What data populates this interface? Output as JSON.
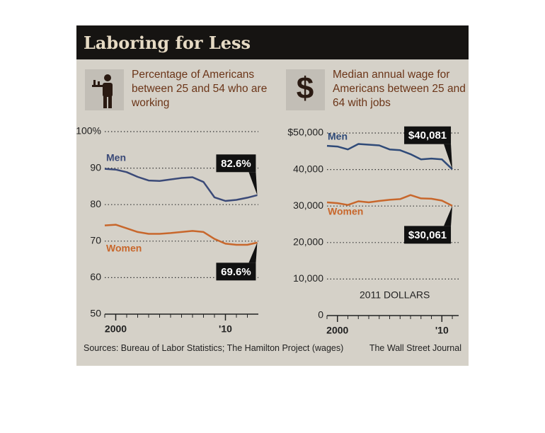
{
  "header": {
    "title": "Laboring for Less"
  },
  "chart_data": [
    {
      "type": "line",
      "title": "Percentage of Americans between 25 and 54 who are working",
      "x": [
        1999,
        2000,
        2001,
        2002,
        2003,
        2004,
        2005,
        2006,
        2007,
        2008,
        2009,
        2010,
        2011,
        2012,
        2012.9
      ],
      "xlim": [
        1999,
        2013
      ],
      "xticks": [
        2000,
        {
          "value": 2010,
          "label": "'10"
        }
      ],
      "minor_xticks": [
        1999,
        2000,
        2001,
        2002,
        2003,
        2004,
        2005,
        2006,
        2007,
        2008,
        2009,
        2010,
        2011,
        2012
      ],
      "ylim": [
        50,
        100
      ],
      "yticks": [
        50,
        60,
        70,
        80,
        90,
        {
          "value": 100,
          "label": "100%"
        }
      ],
      "grid": true,
      "series": [
        {
          "name": "Men",
          "color": "#3b4a78",
          "values": [
            89.8,
            89.6,
            88.9,
            87.6,
            86.6,
            86.5,
            86.9,
            87.3,
            87.5,
            86.2,
            82.0,
            81.0,
            81.3,
            81.9,
            82.6
          ],
          "value_labels": [
            null,
            null,
            null,
            null,
            null,
            null,
            null,
            null,
            null,
            null,
            null,
            null,
            null,
            null,
            "82.6%"
          ]
        },
        {
          "name": "Women",
          "color": "#c8672c",
          "values": [
            74.3,
            74.5,
            73.5,
            72.5,
            72.0,
            72.0,
            72.2,
            72.5,
            72.8,
            72.5,
            70.6,
            69.3,
            69.0,
            69.0,
            69.6
          ],
          "value_labels": [
            null,
            null,
            null,
            null,
            null,
            null,
            null,
            null,
            null,
            null,
            null,
            null,
            null,
            null,
            "69.6%"
          ]
        }
      ]
    },
    {
      "type": "line",
      "title": "Median annual wage for Americans between 25 and 64 with jobs",
      "icon": "$",
      "note": "2011 DOLLARS",
      "x": [
        1999,
        2000,
        2001,
        2002,
        2003,
        2004,
        2005,
        2006,
        2007,
        2008,
        2009,
        2010,
        2011
      ],
      "xlim": [
        1999,
        2011.2
      ],
      "xticks": [
        2000,
        {
          "value": 2010,
          "label": "'10"
        }
      ],
      "minor_xticks": [
        1999,
        2000,
        2001,
        2002,
        2003,
        2004,
        2005,
        2006,
        2007,
        2008,
        2009,
        2010,
        2011
      ],
      "ylim": [
        0,
        50000
      ],
      "yticks": [
        0,
        {
          "value": 10000,
          "label": "10,000"
        },
        {
          "value": 20000,
          "label": "20,000"
        },
        {
          "value": 30000,
          "label": "30,000"
        },
        {
          "value": 40000,
          "label": "40,000"
        },
        {
          "value": 50000,
          "label": "$50,000"
        }
      ],
      "grid": true,
      "series": [
        {
          "name": "Men",
          "color": "#2f4a78",
          "values": [
            46500,
            46300,
            45500,
            47000,
            46800,
            46600,
            45500,
            45300,
            44200,
            42800,
            43000,
            42800,
            40081
          ],
          "value_labels": [
            null,
            null,
            null,
            null,
            null,
            null,
            null,
            null,
            null,
            null,
            null,
            null,
            "$40,081"
          ]
        },
        {
          "name": "Women",
          "color": "#c8672c",
          "values": [
            31000,
            30800,
            30300,
            31300,
            31000,
            31400,
            31700,
            31900,
            33000,
            32100,
            32000,
            31500,
            30061
          ],
          "value_labels": [
            null,
            null,
            null,
            null,
            null,
            null,
            null,
            null,
            null,
            null,
            null,
            null,
            "$30,061"
          ]
        }
      ]
    }
  ],
  "footer": {
    "source": "Sources: Bureau of Labor Statistics; The Hamilton Project (wages)",
    "credit": "The Wall Street Journal"
  }
}
